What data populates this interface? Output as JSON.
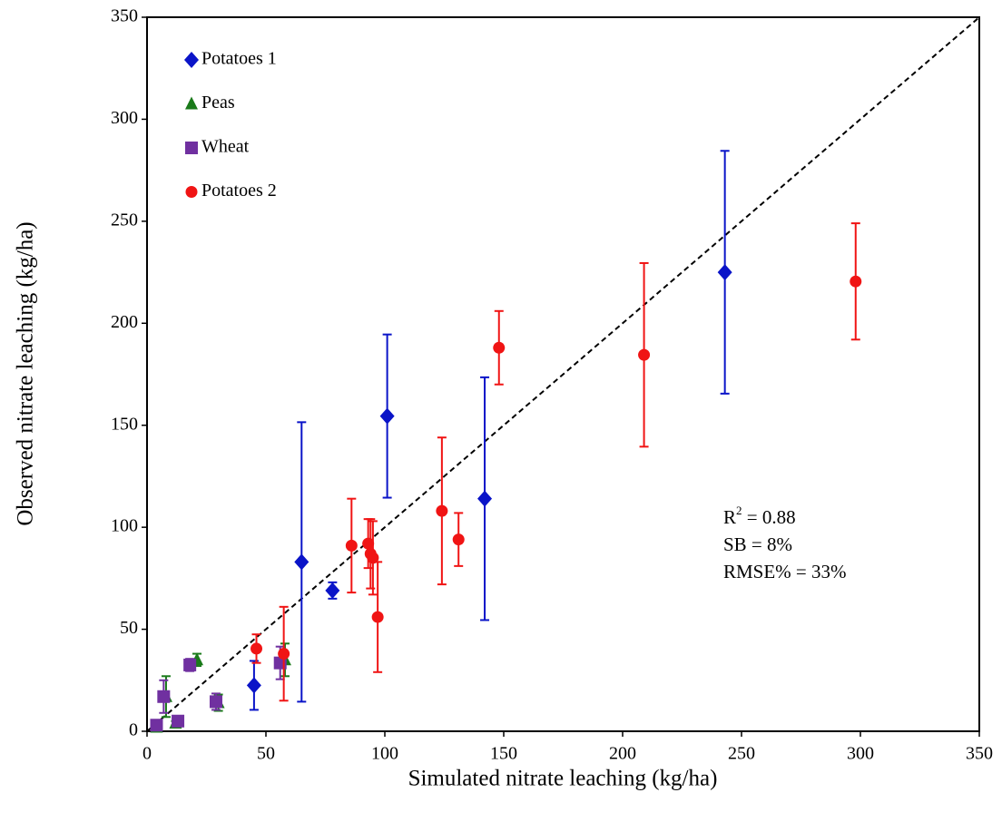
{
  "chart_data": {
    "type": "scatter",
    "x_label": "Simulated nitrate leaching (kg/ha)",
    "y_label": "Observed nitrate leaching (kg/ha)",
    "xlim": [
      0,
      350
    ],
    "ylim": [
      0,
      350
    ],
    "xticks": [
      0,
      50,
      100,
      150,
      200,
      250,
      300,
      350
    ],
    "yticks": [
      0,
      50,
      100,
      150,
      200,
      250,
      300,
      350
    ],
    "grid": false,
    "identity_line": true,
    "legend": "upper left",
    "r2_label": {
      "base": "R",
      "sup": "2",
      "text": " = 0.88"
    },
    "annotations": [
      "SB = 8%",
      "RMSE% = 33%"
    ],
    "series": [
      {
        "name": "Potatoes 1",
        "color": "#0a14c8",
        "marker": "diamond",
        "x": [
          45,
          65,
          78,
          101,
          142,
          243
        ],
        "values": [
          22.5,
          83,
          69,
          154.5,
          114,
          225
        ],
        "errors": [
          12,
          68.5,
          4,
          40,
          59.5,
          59.5
        ]
      },
      {
        "name": "Peas",
        "color": "#1a7a1a",
        "marker": "triangle",
        "x": [
          4,
          8,
          12,
          21,
          30,
          58
        ],
        "values": [
          2,
          17,
          4,
          35,
          14,
          35
        ],
        "errors": [
          1,
          10,
          1,
          3,
          4,
          8
        ]
      },
      {
        "name": "Wheat",
        "color": "#7030a0",
        "marker": "square",
        "x": [
          4,
          7,
          13,
          18,
          29,
          56
        ],
        "values": [
          3,
          17,
          5,
          32.5,
          14.5,
          33.5
        ],
        "errors": [
          1,
          8,
          1,
          3,
          4,
          8
        ]
      },
      {
        "name": "Potatoes 2",
        "color": "#f01414",
        "marker": "circle",
        "x": [
          46,
          57.5,
          86,
          93,
          94,
          95,
          97,
          124,
          131,
          148,
          209,
          298
        ],
        "values": [
          40.5,
          38,
          91,
          92,
          87,
          85,
          56,
          108,
          94,
          188,
          184.5,
          220.5
        ],
        "errors": [
          7,
          23,
          23,
          12,
          17,
          18,
          27,
          36,
          13,
          18,
          45,
          28.5
        ]
      }
    ]
  }
}
